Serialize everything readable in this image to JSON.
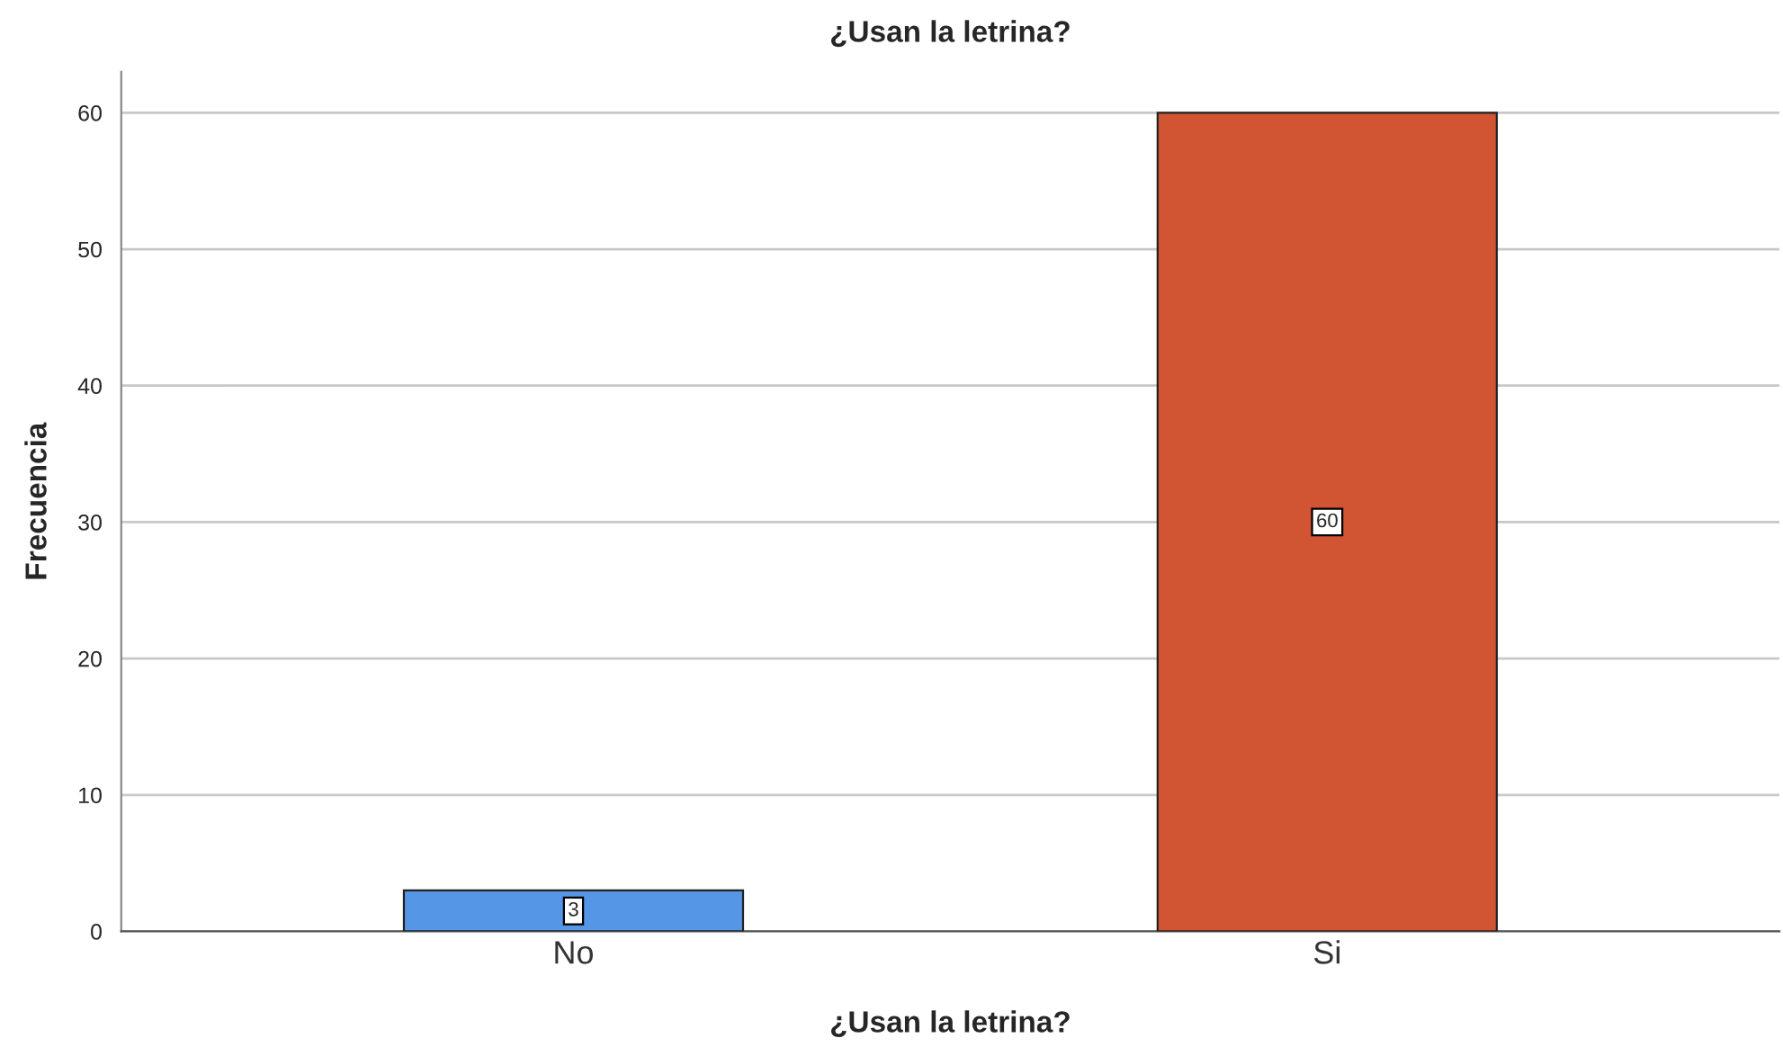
{
  "chart_data": {
    "type": "bar",
    "title": "¿Usan la letrina?",
    "xlabel": "¿Usan la letrina?",
    "ylabel": "Frecuencia",
    "categories": [
      "No",
      "Si"
    ],
    "values": [
      3,
      60
    ],
    "colors": [
      "#5596e6",
      "#d15433"
    ],
    "ylim": [
      0,
      63
    ],
    "yticks": [
      0,
      10,
      20,
      30,
      40,
      50,
      60
    ],
    "grid": "y",
    "data_labels": true
  }
}
